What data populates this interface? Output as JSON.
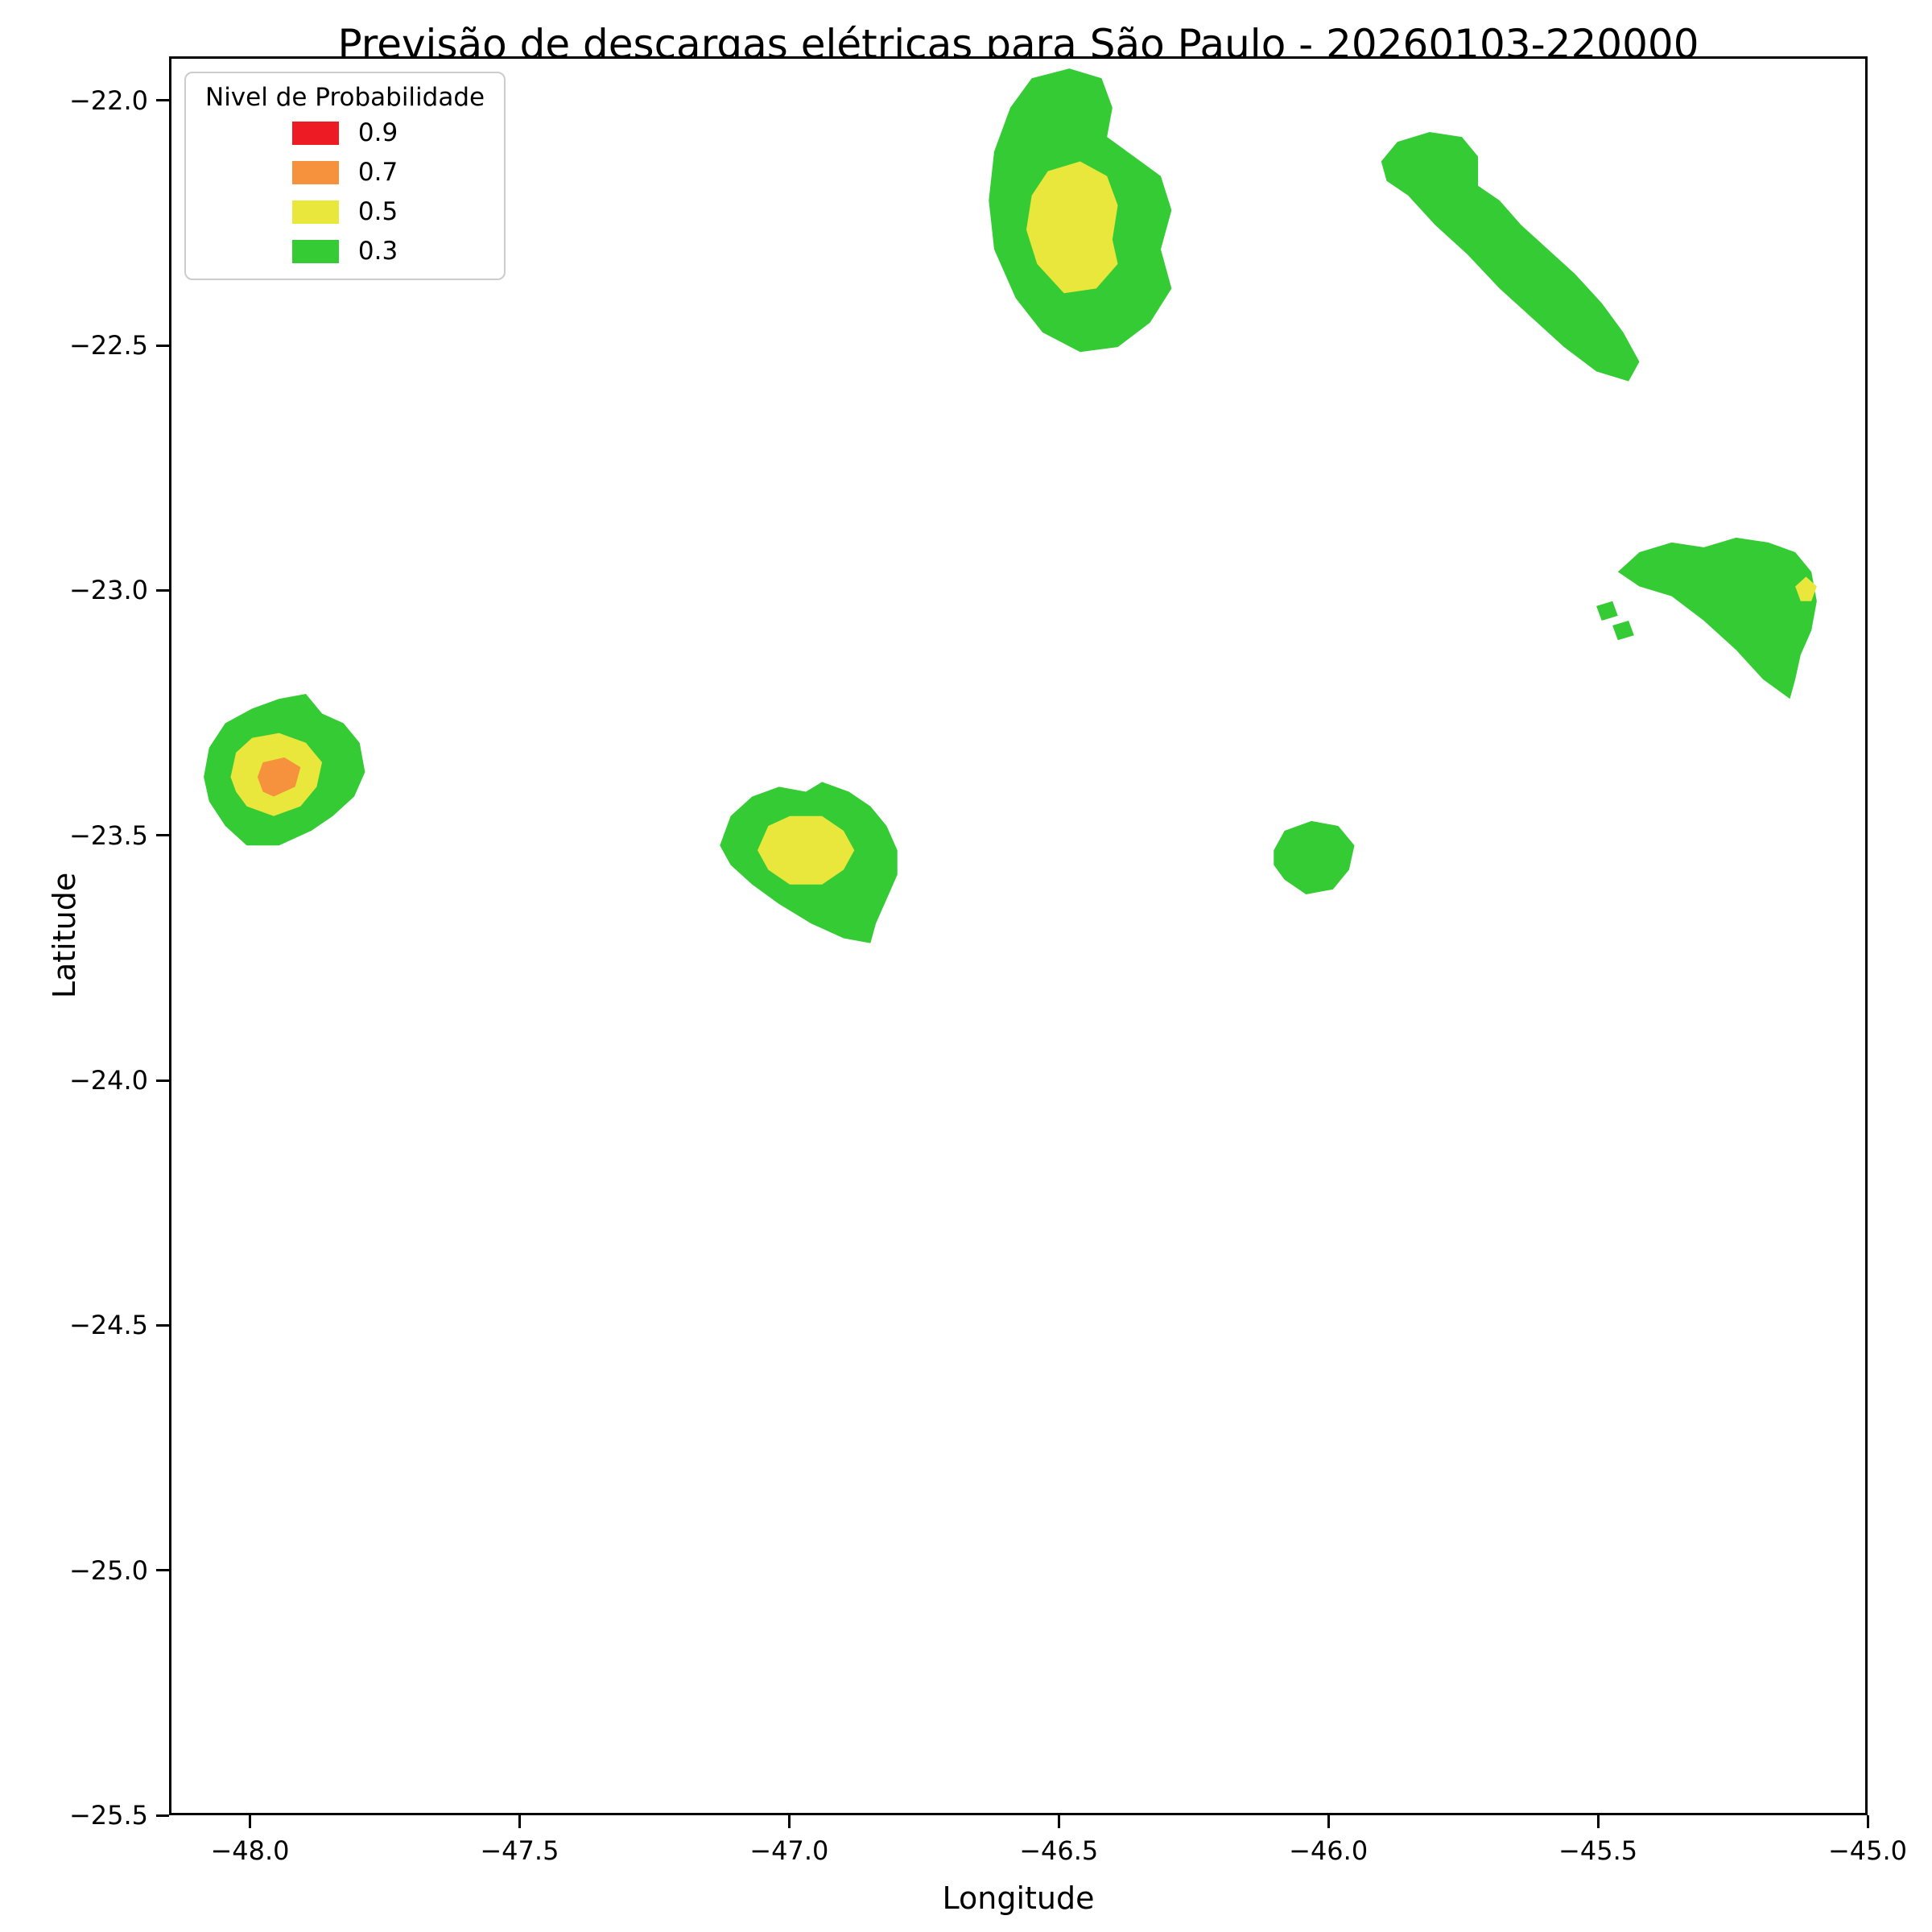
{
  "legend": {
    "title": "Nivel de Probabilidade"
  },
  "chart_data": {
    "type": "area",
    "subtype": "filled-contour-map",
    "title": "Previsão de descargas elétricas para São Paulo - 20260103-220000",
    "xlabel": "Longitude",
    "ylabel": "Latitude",
    "xlim": [
      -48.15,
      -45.0
    ],
    "ylim": [
      -25.5,
      -21.91
    ],
    "grid": false,
    "legend_position": "upper left",
    "xticks": {
      "values": [
        -48.0,
        -47.5,
        -47.0,
        -46.5,
        -46.0,
        -45.5,
        -45.0
      ],
      "labels": [
        "−48.0",
        "−47.5",
        "−47.0",
        "−46.5",
        "−46.0",
        "−45.5",
        "−45.0"
      ]
    },
    "yticks": {
      "values": [
        -22.0,
        -22.5,
        -23.0,
        -23.5,
        -24.0,
        -24.5,
        -25.0,
        -25.5
      ],
      "labels": [
        "−22.0",
        "−22.5",
        "−23.0",
        "−23.5",
        "−24.0",
        "−24.5",
        "−25.0",
        "−25.5"
      ]
    },
    "levels": [
      {
        "label": "0.9",
        "value": 0.9,
        "color": "#ed1c24"
      },
      {
        "label": "0.7",
        "value": 0.7,
        "color": "#f6913e"
      },
      {
        "label": "0.5",
        "value": 0.5,
        "color": "#e9e73c"
      },
      {
        "label": "0.3",
        "value": 0.3,
        "color": "#35cb35"
      }
    ],
    "regions": [
      {
        "name": "top-center-green",
        "level": 0.3,
        "points": [
          [
            -46.63,
            -22.2
          ],
          [
            -46.62,
            -22.1
          ],
          [
            -46.59,
            -22.01
          ],
          [
            -46.55,
            -21.95
          ],
          [
            -46.48,
            -21.93
          ],
          [
            -46.42,
            -21.95
          ],
          [
            -46.4,
            -22.01
          ],
          [
            -46.41,
            -22.07
          ],
          [
            -46.36,
            -22.11
          ],
          [
            -46.31,
            -22.15
          ],
          [
            -46.29,
            -22.22
          ],
          [
            -46.31,
            -22.3
          ],
          [
            -46.29,
            -22.38
          ],
          [
            -46.33,
            -22.45
          ],
          [
            -46.39,
            -22.5
          ],
          [
            -46.46,
            -22.51
          ],
          [
            -46.53,
            -22.47
          ],
          [
            -46.58,
            -22.4
          ],
          [
            -46.62,
            -22.3
          ]
        ]
      },
      {
        "name": "top-right-band-green",
        "level": 0.3,
        "points": [
          [
            -45.9,
            -22.12
          ],
          [
            -45.87,
            -22.08
          ],
          [
            -45.81,
            -22.06
          ],
          [
            -45.75,
            -22.07
          ],
          [
            -45.72,
            -22.11
          ],
          [
            -45.72,
            -22.17
          ],
          [
            -45.68,
            -22.2
          ],
          [
            -45.64,
            -22.25
          ],
          [
            -45.59,
            -22.3
          ],
          [
            -45.54,
            -22.35
          ],
          [
            -45.49,
            -22.41
          ],
          [
            -45.45,
            -22.47
          ],
          [
            -45.42,
            -22.53
          ],
          [
            -45.44,
            -22.57
          ],
          [
            -45.5,
            -22.55
          ],
          [
            -45.56,
            -22.5
          ],
          [
            -45.62,
            -22.44
          ],
          [
            -45.68,
            -22.38
          ],
          [
            -45.74,
            -22.31
          ],
          [
            -45.8,
            -22.25
          ],
          [
            -45.85,
            -22.19
          ],
          [
            -45.89,
            -22.16
          ]
        ]
      },
      {
        "name": "right-triangle-green",
        "level": 0.3,
        "points": [
          [
            -45.46,
            -22.96
          ],
          [
            -45.42,
            -22.92
          ],
          [
            -45.36,
            -22.9
          ],
          [
            -45.3,
            -22.91
          ],
          [
            -45.24,
            -22.89
          ],
          [
            -45.18,
            -22.9
          ],
          [
            -45.13,
            -22.92
          ],
          [
            -45.1,
            -22.96
          ],
          [
            -45.09,
            -23.02
          ],
          [
            -45.1,
            -23.08
          ],
          [
            -45.12,
            -23.13
          ],
          [
            -45.13,
            -23.18
          ],
          [
            -45.14,
            -23.22
          ],
          [
            -45.19,
            -23.18
          ],
          [
            -45.24,
            -23.12
          ],
          [
            -45.3,
            -23.06
          ],
          [
            -45.36,
            -23.01
          ],
          [
            -45.42,
            -22.99
          ]
        ]
      },
      {
        "name": "right-fragment-a-green",
        "level": 0.3,
        "points": [
          [
            -45.5,
            -23.03
          ],
          [
            -45.47,
            -23.02
          ],
          [
            -45.46,
            -23.05
          ],
          [
            -45.49,
            -23.06
          ]
        ]
      },
      {
        "name": "right-fragment-b-green",
        "level": 0.3,
        "points": [
          [
            -45.47,
            -23.07
          ],
          [
            -45.44,
            -23.06
          ],
          [
            -45.43,
            -23.09
          ],
          [
            -45.46,
            -23.1
          ]
        ]
      },
      {
        "name": "left-blob-green",
        "level": 0.3,
        "points": [
          [
            -48.09,
            -23.38
          ],
          [
            -48.08,
            -23.32
          ],
          [
            -48.05,
            -23.27
          ],
          [
            -48.0,
            -23.24
          ],
          [
            -47.95,
            -23.22
          ],
          [
            -47.9,
            -23.21
          ],
          [
            -47.87,
            -23.25
          ],
          [
            -47.83,
            -23.27
          ],
          [
            -47.8,
            -23.31
          ],
          [
            -47.79,
            -23.37
          ],
          [
            -47.81,
            -23.42
          ],
          [
            -47.85,
            -23.46
          ],
          [
            -47.89,
            -23.49
          ],
          [
            -47.95,
            -23.52
          ],
          [
            -48.01,
            -23.52
          ],
          [
            -48.05,
            -23.48
          ],
          [
            -48.08,
            -23.43
          ]
        ]
      },
      {
        "name": "center-blob-green",
        "level": 0.3,
        "points": [
          [
            -47.13,
            -23.52
          ],
          [
            -47.11,
            -23.46
          ],
          [
            -47.07,
            -23.42
          ],
          [
            -47.02,
            -23.4
          ],
          [
            -46.97,
            -23.41
          ],
          [
            -46.94,
            -23.39
          ],
          [
            -46.89,
            -23.41
          ],
          [
            -46.85,
            -23.44
          ],
          [
            -46.82,
            -23.48
          ],
          [
            -46.8,
            -23.53
          ],
          [
            -46.8,
            -23.58
          ],
          [
            -46.82,
            -23.63
          ],
          [
            -46.84,
            -23.68
          ],
          [
            -46.85,
            -23.72
          ],
          [
            -46.9,
            -23.71
          ],
          [
            -46.96,
            -23.68
          ],
          [
            -47.02,
            -23.64
          ],
          [
            -47.07,
            -23.6
          ],
          [
            -47.11,
            -23.56
          ]
        ]
      },
      {
        "name": "small-blob-green",
        "level": 0.3,
        "points": [
          [
            -46.1,
            -23.53
          ],
          [
            -46.08,
            -23.49
          ],
          [
            -46.03,
            -23.47
          ],
          [
            -45.98,
            -23.48
          ],
          [
            -45.95,
            -23.52
          ],
          [
            -45.96,
            -23.57
          ],
          [
            -45.99,
            -23.61
          ],
          [
            -46.04,
            -23.62
          ],
          [
            -46.08,
            -23.59
          ],
          [
            -46.1,
            -23.56
          ]
        ]
      },
      {
        "name": "top-center-yellow",
        "level": 0.5,
        "points": [
          [
            -46.56,
            -22.26
          ],
          [
            -46.55,
            -22.19
          ],
          [
            -46.52,
            -22.14
          ],
          [
            -46.46,
            -22.12
          ],
          [
            -46.41,
            -22.15
          ],
          [
            -46.39,
            -22.21
          ],
          [
            -46.4,
            -22.28
          ],
          [
            -46.39,
            -22.33
          ],
          [
            -46.43,
            -22.38
          ],
          [
            -46.49,
            -22.39
          ],
          [
            -46.54,
            -22.33
          ]
        ]
      },
      {
        "name": "left-blob-yellow",
        "level": 0.5,
        "points": [
          [
            -48.04,
            -23.38
          ],
          [
            -48.03,
            -23.33
          ],
          [
            -48.0,
            -23.3
          ],
          [
            -47.95,
            -23.29
          ],
          [
            -47.9,
            -23.31
          ],
          [
            -47.87,
            -23.35
          ],
          [
            -47.88,
            -23.4
          ],
          [
            -47.91,
            -23.44
          ],
          [
            -47.96,
            -23.46
          ],
          [
            -48.01,
            -23.44
          ],
          [
            -48.03,
            -23.41
          ]
        ]
      },
      {
        "name": "center-blob-yellow",
        "level": 0.5,
        "points": [
          [
            -47.06,
            -23.53
          ],
          [
            -47.04,
            -23.48
          ],
          [
            -47.0,
            -23.46
          ],
          [
            -46.94,
            -23.46
          ],
          [
            -46.9,
            -23.49
          ],
          [
            -46.88,
            -23.53
          ],
          [
            -46.9,
            -23.57
          ],
          [
            -46.94,
            -23.6
          ],
          [
            -47.0,
            -23.6
          ],
          [
            -47.04,
            -23.57
          ]
        ]
      },
      {
        "name": "right-edge-yellow-speck",
        "level": 0.5,
        "points": [
          [
            -45.13,
            -22.99
          ],
          [
            -45.11,
            -22.97
          ],
          [
            -45.09,
            -22.99
          ],
          [
            -45.1,
            -23.02
          ],
          [
            -45.12,
            -23.02
          ]
        ]
      },
      {
        "name": "left-blob-orange",
        "level": 0.7,
        "points": [
          [
            -47.99,
            -23.38
          ],
          [
            -47.98,
            -23.35
          ],
          [
            -47.94,
            -23.34
          ],
          [
            -47.91,
            -23.36
          ],
          [
            -47.92,
            -23.4
          ],
          [
            -47.96,
            -23.42
          ],
          [
            -47.98,
            -23.41
          ]
        ]
      }
    ]
  }
}
